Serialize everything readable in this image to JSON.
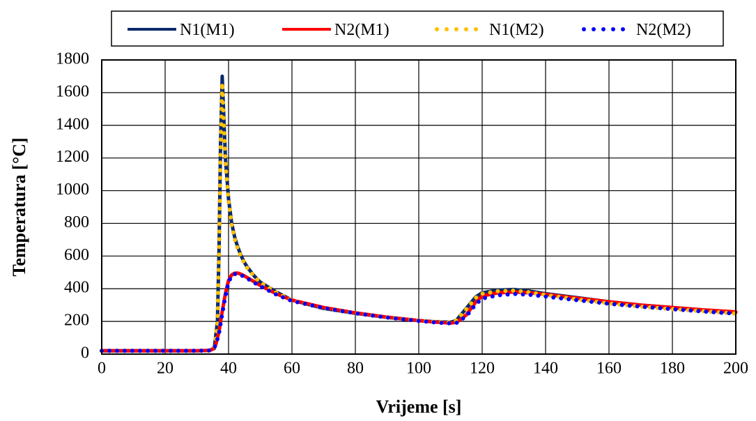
{
  "chart_data": {
    "type": "line",
    "title": "",
    "xlabel": "Vrijeme [s]",
    "ylabel": "Temperatura [°C]",
    "xlim": [
      0,
      200
    ],
    "ylim": [
      0,
      1800
    ],
    "xticks": [
      "0",
      "20",
      "40",
      "60",
      "80",
      "100",
      "120",
      "140",
      "160",
      "180",
      "200"
    ],
    "yticks": [
      "0",
      "200",
      "400",
      "600",
      "800",
      "1000",
      "1200",
      "1400",
      "1600",
      "1800"
    ],
    "grid": true,
    "legend_position": "top",
    "series": [
      {
        "name": "N1(M1)",
        "color": "#0b2a6b",
        "style": "solid",
        "x": [
          0,
          10,
          20,
          30,
          34,
          35.5,
          36.5,
          37,
          37.5,
          38,
          38.5,
          39,
          40,
          41,
          42,
          43,
          44,
          45,
          46,
          48,
          50,
          55,
          60,
          70,
          80,
          90,
          100,
          105,
          110,
          111,
          112,
          115,
          118,
          120,
          125,
          130,
          135,
          140,
          150,
          160,
          170,
          180,
          190,
          200
        ],
        "y": [
          20,
          20,
          20,
          20,
          22,
          35,
          200,
          650,
          1300,
          1700,
          1450,
          1200,
          950,
          800,
          710,
          650,
          600,
          560,
          530,
          480,
          440,
          380,
          330,
          280,
          250,
          225,
          205,
          198,
          195,
          200,
          210,
          280,
          350,
          375,
          392,
          395,
          385,
          370,
          345,
          320,
          300,
          285,
          270,
          255
        ]
      },
      {
        "name": "N2(M1)",
        "color": "#ff0000",
        "style": "solid",
        "x": [
          0,
          10,
          20,
          30,
          34,
          35,
          36,
          37,
          38,
          39,
          40,
          41,
          42,
          43,
          44,
          45,
          47,
          50,
          55,
          60,
          70,
          80,
          90,
          100,
          105,
          110,
          112,
          115,
          118,
          120,
          125,
          130,
          135,
          140,
          150,
          160,
          170,
          180,
          190,
          200
        ],
        "y": [
          20,
          20,
          20,
          20,
          22,
          30,
          60,
          140,
          260,
          370,
          450,
          485,
          495,
          495,
          488,
          478,
          455,
          420,
          370,
          330,
          285,
          252,
          226,
          205,
          196,
          190,
          195,
          240,
          320,
          355,
          375,
          380,
          375,
          365,
          342,
          320,
          300,
          285,
          270,
          258
        ]
      },
      {
        "name": "N1(M2)",
        "color": "#ffc000",
        "style": "dotted",
        "x": [
          0,
          10,
          20,
          30,
          34,
          35.5,
          36.5,
          37,
          37.5,
          38,
          38.5,
          39,
          40,
          41,
          42,
          43,
          44,
          45,
          46,
          48,
          50,
          55,
          60,
          70,
          80,
          90,
          100,
          105,
          110,
          111,
          112,
          115,
          118,
          120,
          125,
          130,
          135,
          140,
          150,
          160,
          170,
          180,
          190,
          200
        ],
        "y": [
          20,
          20,
          20,
          20,
          22,
          35,
          190,
          620,
          1250,
          1660,
          1420,
          1180,
          940,
          790,
          700,
          640,
          595,
          555,
          525,
          478,
          438,
          378,
          328,
          280,
          250,
          225,
          205,
          198,
          193,
          198,
          208,
          275,
          345,
          370,
          385,
          388,
          378,
          362,
          335,
          310,
          290,
          275,
          262,
          248
        ]
      },
      {
        "name": "N2(M2)",
        "color": "#0000ff",
        "style": "dotted",
        "x": [
          0,
          10,
          20,
          30,
          34,
          35,
          36,
          37,
          38,
          39,
          40,
          41,
          42,
          43,
          44,
          45,
          47,
          50,
          55,
          60,
          70,
          80,
          90,
          100,
          105,
          110,
          112,
          115,
          118,
          120,
          125,
          130,
          135,
          140,
          150,
          160,
          170,
          180,
          190,
          200
        ],
        "y": [
          20,
          20,
          20,
          20,
          22,
          28,
          55,
          130,
          245,
          355,
          440,
          478,
          490,
          490,
          483,
          473,
          450,
          415,
          365,
          325,
          282,
          250,
          224,
          203,
          194,
          188,
          192,
          232,
          305,
          340,
          360,
          368,
          363,
          352,
          330,
          308,
          290,
          275,
          260,
          248
        ]
      }
    ]
  }
}
